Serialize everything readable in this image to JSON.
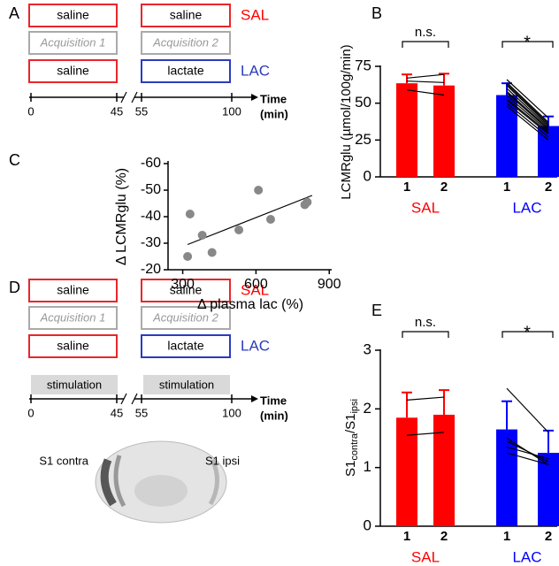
{
  "panel_labels": [
    "A",
    "B",
    "C",
    "D",
    "E"
  ],
  "protocol_a": {
    "rows": [
      [
        "saline",
        "saline",
        "SAL"
      ],
      [
        "Acquisition 1",
        "Acquisition 2"
      ],
      [
        "saline",
        "lactate",
        "LAC"
      ]
    ],
    "time_ticks": [
      0,
      45,
      55,
      100
    ],
    "time_label": [
      "Time",
      "(min)"
    ]
  },
  "protocol_d": {
    "rows": [
      [
        "saline",
        "saline",
        "SAL"
      ],
      [
        "Acquisition 1",
        "Acquisition 2"
      ],
      [
        "saline",
        "lactate",
        "LAC"
      ]
    ],
    "stimulation": [
      "stimulation",
      "stimulation"
    ],
    "time_ticks": [
      0,
      45,
      55,
      100
    ],
    "time_label": [
      "Time",
      "(min)"
    ]
  },
  "brain": {
    "left": "S1 contra",
    "right": "S1 ipsi"
  },
  "chart_data": [
    {
      "type": "bar",
      "ylabel": [
        {
          "text": "LCMRglu (µmol/100g/min)",
          "subscript": false
        }
      ],
      "categories": [
        "1",
        "2"
      ],
      "series": [
        {
          "name": "SAL",
          "color": "#ff0000",
          "values": [
            63.5,
            62
          ],
          "errors": [
            6,
            8
          ],
          "pairs": [
            [
              67,
              69.5
            ],
            [
              65,
              64
            ],
            [
              59,
              55.5
            ]
          ]
        },
        {
          "name": "LAC",
          "color": "#0000ff",
          "values": [
            55.5,
            34.5
          ],
          "errors": [
            8,
            6.5
          ],
          "pairs": [
            [
              66,
              40
            ],
            [
              64,
              37
            ],
            [
              63,
              36
            ],
            [
              62,
              35
            ],
            [
              60,
              34
            ],
            [
              58,
              33
            ],
            [
              57,
              32
            ],
            [
              55,
              31
            ],
            [
              53,
              30
            ],
            [
              52,
              29
            ],
            [
              50,
              27
            ],
            [
              48,
              25
            ]
          ]
        }
      ],
      "significance": [
        "n.s.",
        "*"
      ],
      "ylim": [
        0,
        75
      ],
      "yticks": [
        0,
        25,
        50,
        75
      ]
    },
    {
      "type": "scatter",
      "xlabel": "Δ plasma lac (%)",
      "ylabel": "Δ LCMRglu (%)",
      "x": [
        320,
        330,
        380,
        420,
        530,
        610,
        660,
        800,
        810
      ],
      "y": [
        -25,
        -41,
        -33,
        -26.5,
        -35,
        -50,
        -39,
        -44.5,
        -45.5
      ],
      "color": "#888888",
      "fit": {
        "x": [
          320,
          830
        ],
        "y": [
          -29.5,
          -48
        ]
      },
      "xlim": [
        240,
        910
      ],
      "ylim": [
        -20,
        -60
      ],
      "xticks": [
        300,
        600,
        900
      ],
      "yticks": [
        -60,
        -50,
        -40,
        -30,
        -20
      ]
    },
    {
      "type": "bar",
      "ylabel": [
        {
          "text": "S1",
          "subscript": false
        },
        {
          "text": "contra",
          "subscript": true
        },
        {
          "text": "/S1",
          "subscript": false
        },
        {
          "text": "ipsi",
          "subscript": true
        }
      ],
      "categories": [
        "1",
        "2"
      ],
      "series": [
        {
          "name": "SAL",
          "color": "#ff0000",
          "values": [
            1.85,
            1.9
          ],
          "errors": [
            0.43,
            0.42
          ],
          "pairs": [
            [
              2.15,
              2.2
            ],
            [
              1.55,
              1.6
            ]
          ]
        },
        {
          "name": "LAC",
          "color": "#0000ff",
          "values": [
            1.65,
            1.25
          ],
          "errors": [
            0.48,
            0.38
          ],
          "pairs": [
            [
              2.35,
              1.6
            ],
            [
              1.5,
              1.05
            ],
            [
              1.45,
              1.1
            ],
            [
              1.35,
              1.15
            ],
            [
              1.25,
              1.05
            ]
          ]
        }
      ],
      "significance": [
        "n.s.",
        "*"
      ],
      "ylim": [
        0,
        3
      ],
      "yticks": [
        0,
        1,
        2,
        3
      ]
    }
  ]
}
